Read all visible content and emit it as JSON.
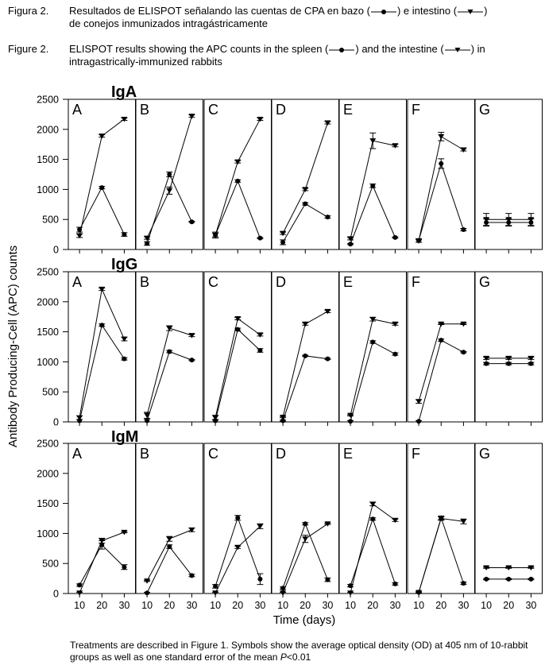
{
  "captions": {
    "es": {
      "label": "Figura 2.",
      "text_a": "Resultados de ELISPOT señalando las cuentas de CPA en bazo (",
      "text_b": ") e intestino (",
      "text_c": ")",
      "text_d": "de conejos inmunizados intragástricamente"
    },
    "en": {
      "label": "Figure 2.",
      "text_a": "ELISPOT results showing the APC counts in the spleen (",
      "text_b": ") and the intestine (",
      "text_c": ") in intragastrically-immunized rabbits"
    }
  },
  "footer": {
    "text": "Treatments are described in Figure 1. Symbols show the average optical density (OD) at 405 nm of 10-rabbit groups as well as one standard error of the mean ",
    "p_italic": "P",
    "p_rest": "<0.01"
  },
  "chart_data": {
    "type": "line",
    "ylabel": "Antibody Producing-Cell (APC) counts",
    "xlabel": "Time (days)",
    "x": [
      10,
      20,
      30
    ],
    "xlim": [
      5,
      35
    ],
    "ylim": [
      0,
      2500
    ],
    "yticks": [
      0,
      500,
      1000,
      1500,
      2000,
      2500
    ],
    "legend": [
      {
        "name": "bazo / spleen",
        "marker": "circle"
      },
      {
        "name": "intestino / intestine",
        "marker": "triangle-down"
      }
    ],
    "rows": [
      {
        "title": "IgA",
        "panels": [
          {
            "label": "A",
            "spleen": [
              330,
              1030,
              250
            ],
            "intestine": [
              230,
              1890,
              2170
            ],
            "spleen_err": [
              40,
              20,
              30
            ],
            "intestine_err": [
              30,
              20,
              20
            ]
          },
          {
            "label": "B",
            "spleen": [
              100,
              1250,
              460
            ],
            "intestine": [
              190,
              980,
              2220
            ],
            "spleen_err": [
              30,
              40,
              10
            ],
            "intestine_err": [
              20,
              60,
              20
            ]
          },
          {
            "label": "C",
            "spleen": [
              240,
              1140,
              190
            ],
            "intestine": [
              240,
              1460,
              2170
            ],
            "spleen_err": [
              30,
              20,
              10
            ],
            "intestine_err": [
              50,
              20,
              20
            ]
          },
          {
            "label": "D",
            "spleen": [
              120,
              760,
              540
            ],
            "intestine": [
              270,
              1000,
              2110
            ],
            "spleen_err": [
              40,
              20,
              20
            ],
            "intestine_err": [
              20,
              20,
              20
            ]
          },
          {
            "label": "E",
            "spleen": [
              90,
              1060,
              200
            ],
            "intestine": [
              180,
              1810,
              1730
            ],
            "spleen_err": [
              10,
              30,
              10
            ],
            "intestine_err": [
              20,
              130,
              20
            ]
          },
          {
            "label": "F",
            "spleen": [
              150,
              1430,
              330
            ],
            "intestine": [
              140,
              1880,
              1660
            ],
            "spleen_err": [
              30,
              80,
              20
            ],
            "intestine_err": [
              20,
              70,
              20
            ]
          },
          {
            "label": "G",
            "spleen": [
              450,
              450,
              450
            ],
            "intestine": [
              500,
              500,
              500
            ],
            "spleen_err": [
              60,
              60,
              60
            ],
            "intestine_err": [
              100,
              100,
              100
            ]
          }
        ]
      },
      {
        "title": "IgG",
        "panels": [
          {
            "label": "A",
            "spleen": [
              20,
              1610,
              1050
            ],
            "intestine": [
              70,
              2210,
              1380
            ],
            "spleen_err": [
              20,
              20,
              20
            ],
            "intestine_err": [
              30,
              20,
              30
            ]
          },
          {
            "label": "B",
            "spleen": [
              20,
              1170,
              1030
            ],
            "intestine": [
              110,
              1560,
              1440
            ],
            "spleen_err": [
              20,
              20,
              10
            ],
            "intestine_err": [
              50,
              40,
              20
            ]
          },
          {
            "label": "C",
            "spleen": [
              20,
              1540,
              1190
            ],
            "intestine": [
              70,
              1720,
              1450
            ],
            "spleen_err": [
              20,
              20,
              30
            ],
            "intestine_err": [
              40,
              20,
              20
            ]
          },
          {
            "label": "D",
            "spleen": [
              20,
              1100,
              1050
            ],
            "intestine": [
              80,
              1630,
              1840
            ],
            "spleen_err": [
              10,
              10,
              10
            ],
            "intestine_err": [
              10,
              20,
              20
            ]
          },
          {
            "label": "E",
            "spleen": [
              10,
              1330,
              1130
            ],
            "intestine": [
              110,
              1710,
              1630
            ],
            "spleen_err": [
              10,
              20,
              20
            ],
            "intestine_err": [
              10,
              30,
              20
            ]
          },
          {
            "label": "F",
            "spleen": [
              10,
              1360,
              1160
            ],
            "intestine": [
              340,
              1630,
              1630
            ],
            "spleen_err": [
              10,
              20,
              10
            ],
            "intestine_err": [
              30,
              10,
              10
            ]
          },
          {
            "label": "G",
            "spleen": [
              970,
              970,
              970
            ],
            "intestine": [
              1060,
              1060,
              1060
            ],
            "spleen_err": [
              20,
              20,
              20
            ],
            "intestine_err": [
              20,
              20,
              20
            ]
          }
        ]
      },
      {
        "title": "IgM",
        "panels": [
          {
            "label": "A",
            "spleen": [
              140,
              810,
              440
            ],
            "intestine": [
              10,
              880,
              1020
            ],
            "spleen_err": [
              20,
              70,
              40
            ],
            "intestine_err": [
              10,
              40,
              10
            ]
          },
          {
            "label": "B",
            "spleen": [
              10,
              780,
              300
            ],
            "intestine": [
              210,
              910,
              1060
            ],
            "spleen_err": [
              10,
              30,
              20
            ],
            "intestine_err": [
              10,
              40,
              30
            ]
          },
          {
            "label": "C",
            "spleen": [
              120,
              1260,
              240
            ],
            "intestine": [
              10,
              770,
              1120
            ],
            "spleen_err": [
              30,
              40,
              90
            ],
            "intestine_err": [
              10,
              20,
              40
            ]
          },
          {
            "label": "D",
            "spleen": [
              90,
              1160,
              230
            ],
            "intestine": [
              10,
              910,
              1160
            ],
            "spleen_err": [
              20,
              20,
              30
            ],
            "intestine_err": [
              10,
              60,
              10
            ]
          },
          {
            "label": "E",
            "spleen": [
              130,
              1240,
              160
            ],
            "intestine": [
              10,
              1490,
              1220
            ],
            "spleen_err": [
              20,
              20,
              20
            ],
            "intestine_err": [
              10,
              30,
              20
            ]
          },
          {
            "label": "F",
            "spleen": [
              20,
              1260,
              170
            ],
            "intestine": [
              20,
              1250,
              1200
            ],
            "spleen_err": [
              10,
              30,
              20
            ],
            "intestine_err": [
              10,
              30,
              40
            ]
          },
          {
            "label": "G",
            "spleen": [
              240,
              240,
              240
            ],
            "intestine": [
              430,
              430,
              430
            ],
            "spleen_err": [
              10,
              10,
              10
            ],
            "intestine_err": [
              10,
              10,
              10
            ]
          }
        ]
      }
    ]
  }
}
